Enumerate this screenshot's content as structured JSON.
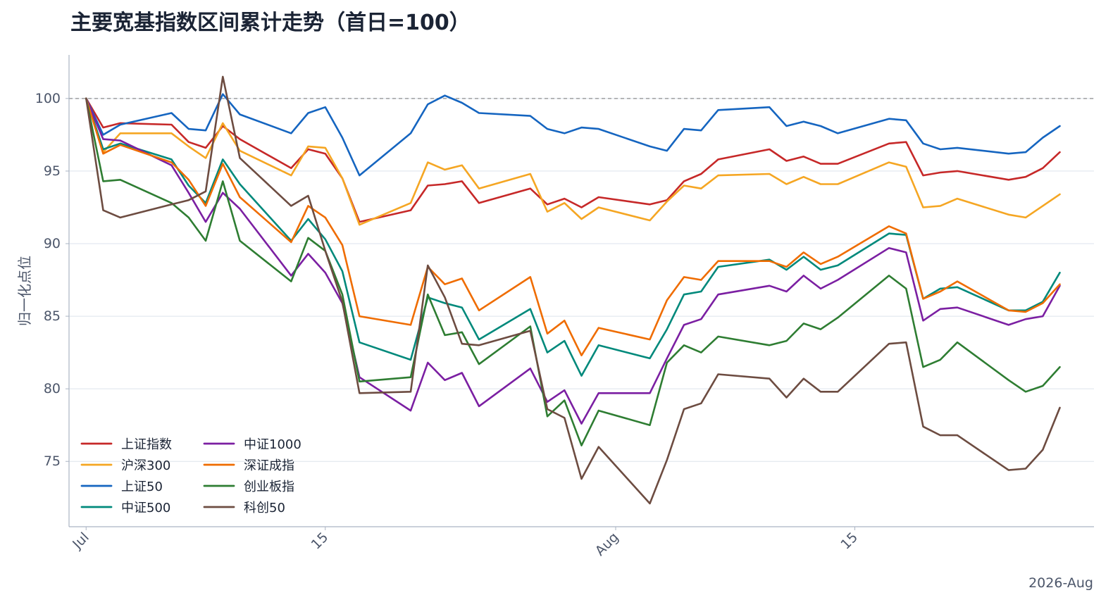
{
  "chart_data": {
    "type": "line",
    "title": "主要宽基指数区间累计走势（首日=100）",
    "xlabel": "",
    "ylabel": "归一化点位",
    "corner_label": "2026-Aug",
    "x_tick_labels": [
      {
        "label": "Jul",
        "date": "2026-07-01"
      },
      {
        "label": "15",
        "date": "2026-07-15"
      },
      {
        "label": "Aug",
        "date": "2026-08-01"
      },
      {
        "label": "15",
        "date": "2026-08-15"
      }
    ],
    "y_ticks": [
      75,
      80,
      85,
      90,
      95,
      100
    ],
    "ylim": [
      70.5,
      103
    ],
    "xlim": [
      "2026-06-30",
      "2026-08-29"
    ],
    "reference_line": 100,
    "grid": "horizontal",
    "legend_position": "lower-left",
    "legend_columns": 2,
    "dates": [
      "2026-07-01",
      "2026-07-02",
      "2026-07-03",
      "2026-07-06",
      "2026-07-07",
      "2026-07-08",
      "2026-07-09",
      "2026-07-10",
      "2026-07-13",
      "2026-07-14",
      "2026-07-15",
      "2026-07-16",
      "2026-07-17",
      "2026-07-20",
      "2026-07-21",
      "2026-07-22",
      "2026-07-23",
      "2026-07-24",
      "2026-07-27",
      "2026-07-28",
      "2026-07-29",
      "2026-07-30",
      "2026-07-31",
      "2026-08-03",
      "2026-08-04",
      "2026-08-05",
      "2026-08-06",
      "2026-08-07",
      "2026-08-10",
      "2026-08-11",
      "2026-08-12",
      "2026-08-13",
      "2026-08-14",
      "2026-08-17",
      "2026-08-18",
      "2026-08-19",
      "2026-08-20",
      "2026-08-21",
      "2026-08-24",
      "2026-08-25",
      "2026-08-26",
      "2026-08-27"
    ],
    "series": [
      {
        "name": "上证指数",
        "color": "#c62828",
        "values": [
          100,
          98.0,
          98.3,
          98.2,
          97.0,
          96.6,
          98.1,
          97.2,
          95.2,
          96.5,
          96.2,
          94.5,
          91.5,
          92.3,
          94.0,
          94.1,
          94.3,
          92.8,
          93.8,
          92.7,
          93.1,
          92.5,
          93.2,
          92.7,
          93.0,
          94.3,
          94.8,
          95.8,
          96.5,
          95.7,
          96.0,
          95.5,
          95.5,
          96.9,
          97.0,
          94.7,
          94.9,
          95.0,
          94.4,
          94.6,
          95.2,
          96.3
        ]
      },
      {
        "name": "沪深300",
        "color": "#f5a623",
        "values": [
          100,
          96.3,
          97.6,
          97.6,
          96.7,
          95.9,
          98.3,
          96.4,
          94.7,
          96.7,
          96.6,
          94.5,
          91.3,
          92.8,
          95.6,
          95.1,
          95.4,
          93.8,
          94.8,
          92.2,
          92.8,
          91.7,
          92.5,
          91.6,
          92.9,
          94.0,
          93.8,
          94.7,
          94.8,
          94.1,
          94.6,
          94.1,
          94.1,
          95.6,
          95.3,
          92.5,
          92.6,
          93.1,
          92.0,
          91.8,
          92.6,
          93.4
        ]
      },
      {
        "name": "上证50",
        "color": "#1565c0",
        "values": [
          100,
          97.5,
          98.2,
          99.0,
          97.9,
          97.8,
          100.3,
          98.9,
          97.6,
          99.0,
          99.4,
          97.3,
          94.7,
          97.6,
          99.6,
          100.2,
          99.7,
          99.0,
          98.8,
          97.9,
          97.6,
          98.0,
          97.9,
          96.7,
          96.4,
          97.9,
          97.8,
          99.2,
          99.4,
          98.1,
          98.4,
          98.1,
          97.6,
          98.6,
          98.5,
          96.9,
          96.5,
          96.6,
          96.2,
          96.3,
          97.3,
          98.1
        ]
      },
      {
        "name": "中证500",
        "color": "#00897b",
        "values": [
          100,
          96.5,
          96.9,
          95.8,
          94.0,
          92.8,
          95.8,
          94.1,
          90.2,
          91.7,
          90.3,
          88.1,
          83.2,
          82.0,
          86.3,
          85.9,
          85.6,
          83.4,
          85.5,
          82.5,
          83.3,
          80.9,
          83.0,
          82.1,
          84.1,
          86.5,
          86.7,
          88.4,
          88.9,
          88.2,
          89.1,
          88.2,
          88.5,
          90.7,
          90.6,
          86.2,
          86.9,
          87.0,
          85.4,
          85.4,
          86.0,
          88.0
        ]
      },
      {
        "name": "中证1000",
        "color": "#7b1fa2",
        "values": [
          100,
          97.2,
          97.1,
          95.4,
          93.5,
          91.5,
          93.5,
          92.4,
          87.8,
          89.3,
          88.0,
          85.9,
          80.8,
          78.5,
          81.8,
          80.6,
          81.1,
          78.8,
          81.4,
          79.1,
          79.9,
          77.6,
          79.7,
          79.7,
          82.1,
          84.4,
          84.8,
          86.5,
          87.1,
          86.7,
          87.8,
          86.9,
          87.5,
          89.7,
          89.4,
          84.7,
          85.5,
          85.6,
          84.4,
          84.8,
          85.0,
          87.1
        ]
      },
      {
        "name": "深证成指",
        "color": "#ef6c00",
        "values": [
          100,
          96.2,
          96.8,
          95.6,
          94.4,
          92.6,
          95.5,
          93.2,
          90.1,
          92.6,
          91.8,
          89.9,
          85.0,
          84.4,
          88.4,
          87.2,
          87.6,
          85.4,
          87.7,
          83.8,
          84.7,
          82.3,
          84.2,
          83.4,
          86.1,
          87.7,
          87.5,
          88.8,
          88.8,
          88.4,
          89.4,
          88.6,
          89.1,
          91.2,
          90.7,
          86.2,
          86.7,
          87.4,
          85.4,
          85.3,
          85.9,
          87.2
        ]
      },
      {
        "name": "创业板指",
        "color": "#2e7d32",
        "values": [
          100,
          94.3,
          94.4,
          92.8,
          91.8,
          90.2,
          94.3,
          90.2,
          87.4,
          90.4,
          89.5,
          86.5,
          80.5,
          80.8,
          86.5,
          83.7,
          83.9,
          81.7,
          84.3,
          78.1,
          79.2,
          76.1,
          78.5,
          77.5,
          81.8,
          83.0,
          82.5,
          83.6,
          83.0,
          83.3,
          84.5,
          84.1,
          84.9,
          87.8,
          86.9,
          81.5,
          82.0,
          83.2,
          80.6,
          79.8,
          80.2,
          81.5
        ]
      },
      {
        "name": "科创50",
        "color": "#6d4c41",
        "values": [
          100,
          92.3,
          91.8,
          92.7,
          93.0,
          93.6,
          101.5,
          95.9,
          92.6,
          93.3,
          89.5,
          86.0,
          79.7,
          79.8,
          88.5,
          86.3,
          83.1,
          83.0,
          84.0,
          78.6,
          78.0,
          73.8,
          76.0,
          72.1,
          75.1,
          78.6,
          79.0,
          81.0,
          80.7,
          79.4,
          80.7,
          79.8,
          79.8,
          83.1,
          83.2,
          77.4,
          76.8,
          76.8,
          74.4,
          74.5,
          75.8,
          78.7
        ]
      }
    ]
  }
}
